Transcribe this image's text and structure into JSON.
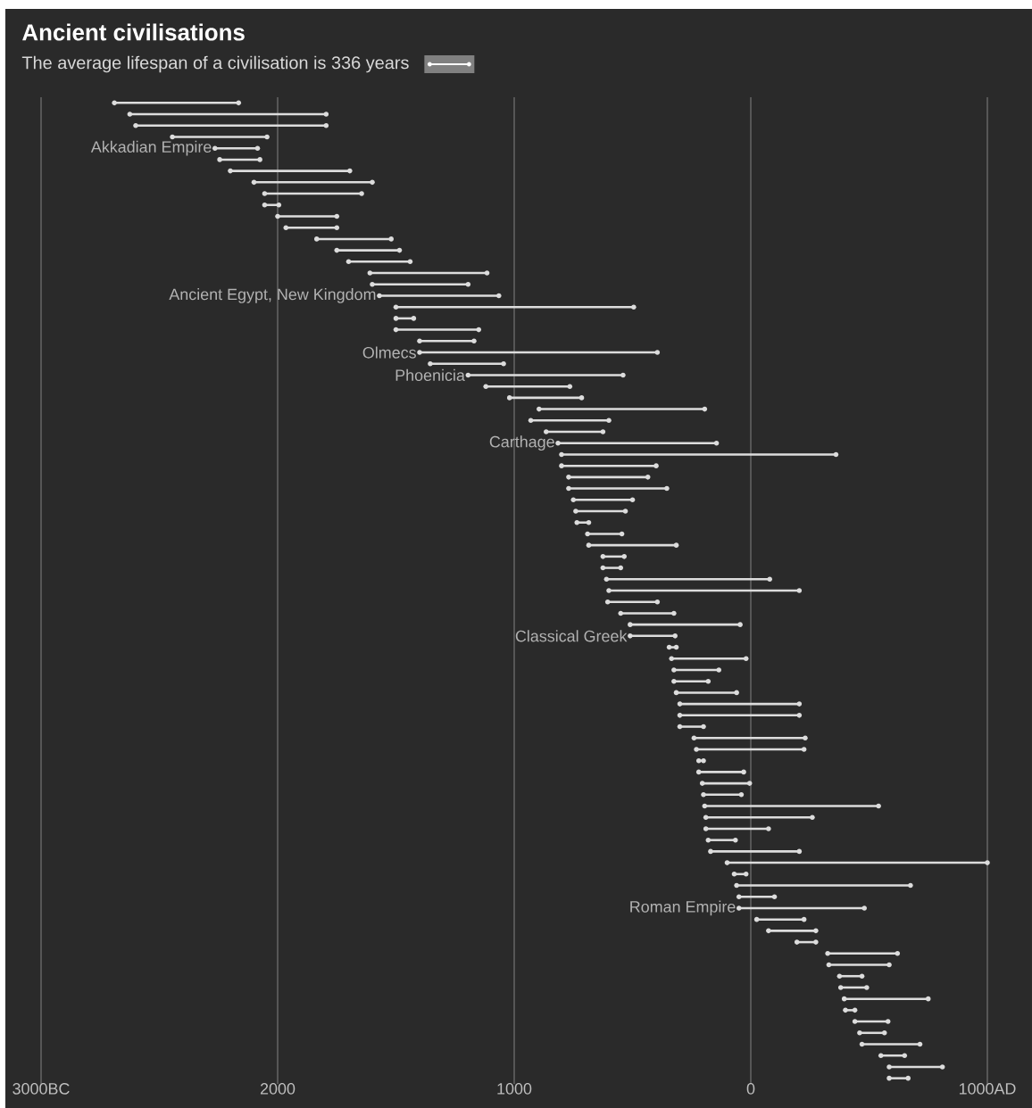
{
  "chart_data": {
    "type": "bar",
    "orientation": "horizontal",
    "title": "Ancient civilisations",
    "subtitle": "The average lifespan of a civilisation is 336 years",
    "categories": [
      null,
      null,
      null,
      null,
      "Akkadian Empire",
      null,
      null,
      null,
      null,
      null,
      null,
      null,
      null,
      null,
      null,
      null,
      null,
      "Ancient Egypt, New Kingdom",
      null,
      null,
      null,
      null,
      "Olmecs",
      null,
      "Phoenicia",
      null,
      null,
      null,
      null,
      null,
      "Carthage",
      null,
      null,
      null,
      null,
      null,
      null,
      null,
      null,
      null,
      null,
      null,
      null,
      null,
      null,
      null,
      null,
      "Classical Greek",
      null,
      null,
      null,
      null,
      null,
      null,
      null,
      null,
      null,
      null,
      null,
      null,
      null,
      null,
      null,
      null,
      null,
      null,
      null,
      null,
      null,
      null,
      null,
      "Roman Empire",
      null,
      null,
      null,
      null,
      null,
      null,
      null,
      null,
      null,
      null,
      null,
      null,
      null,
      null,
      null
    ],
    "base": [
      -2690,
      -2625,
      -2600,
      -2445,
      -2265,
      -2245,
      -2200,
      -2100,
      -2055,
      -2055,
      -2000,
      -1965,
      -1835,
      -1750,
      -1700,
      -1610,
      -1600,
      -1570,
      -1500,
      -1500,
      -1500,
      -1400,
      -1400,
      -1355,
      -1195,
      -1120,
      -1020,
      -895,
      -930,
      -865,
      -815,
      -800,
      -800,
      -770,
      -770,
      -750,
      -740,
      -735,
      -690,
      -685,
      -625,
      -625,
      -610,
      -600,
      -605,
      -550,
      -510,
      -510,
      -345,
      -335,
      -325,
      -325,
      -315,
      -300,
      -300,
      -300,
      -240,
      -230,
      -220,
      -220,
      -205,
      -200,
      -195,
      -190,
      -190,
      -180,
      -170,
      -100,
      -70,
      -60,
      -50,
      -50,
      25,
      75,
      195,
      325,
      330,
      375,
      380,
      395,
      400,
      440,
      460,
      470,
      550,
      585,
      585
    ],
    "values": [
      525,
      830,
      805,
      400,
      180,
      170,
      505,
      500,
      410,
      60,
      250,
      215,
      315,
      265,
      260,
      495,
      405,
      505,
      1005,
      75,
      350,
      230,
      1005,
      310,
      655,
      355,
      305,
      700,
      330,
      240,
      670,
      1160,
      400,
      335,
      415,
      250,
      210,
      50,
      145,
      370,
      90,
      75,
      690,
      805,
      210,
      225,
      465,
      190,
      30,
      315,
      190,
      145,
      255,
      505,
      505,
      100,
      470,
      455,
      20,
      190,
      200,
      160,
      735,
      450,
      265,
      115,
      375,
      1100,
      50,
      735,
      150,
      530,
      200,
      200,
      80,
      295,
      255,
      95,
      110,
      355,
      40,
      140,
      105,
      245,
      100,
      225,
      80
    ],
    "color": "#dcdcdc",
    "marker": "circle",
    "xlim": [
      -3000,
      1000
    ],
    "xticks": [
      {
        "value": -3000,
        "label": "3000BC"
      },
      {
        "value": -2000,
        "label": "2000"
      },
      {
        "value": -1000,
        "label": "1000"
      },
      0,
      {
        "value": 1000,
        "label": "1000AD"
      }
    ],
    "grid": "x"
  }
}
